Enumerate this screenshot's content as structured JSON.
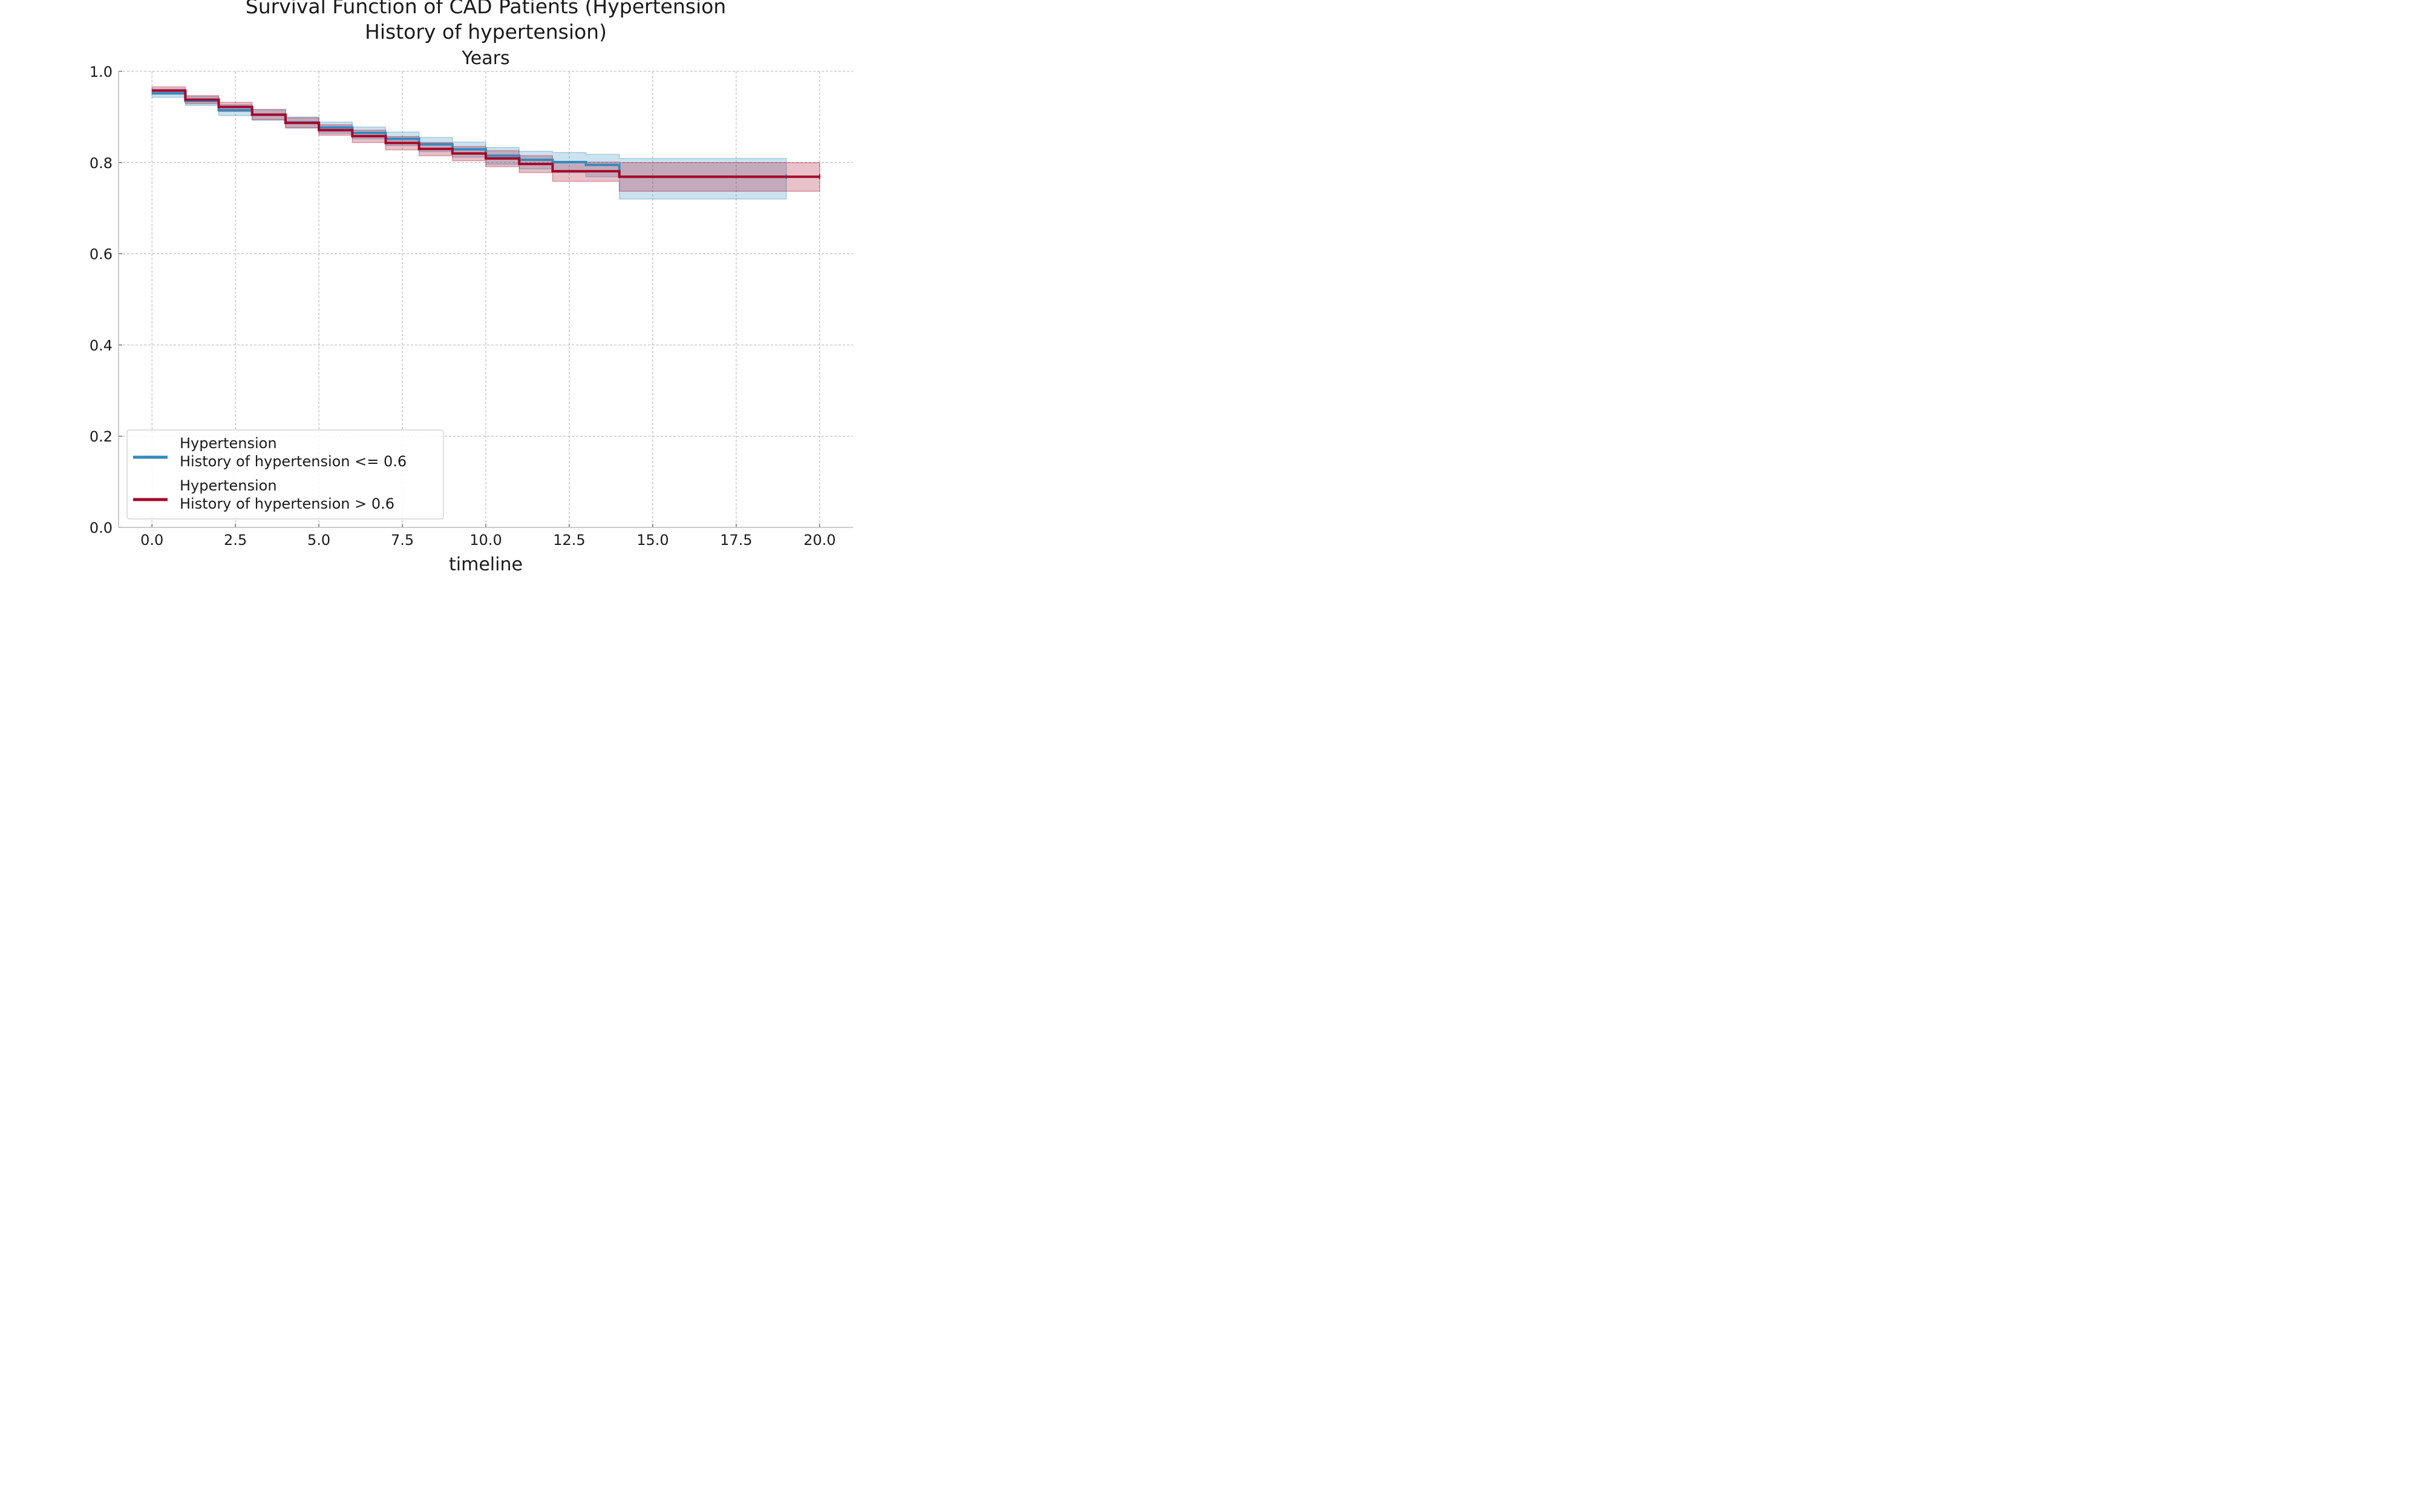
{
  "chart_data": {
    "type": "line",
    "title": "Survival Function of CAD Patients (Hypertension\nHistory of hypertension)",
    "subtitle": "Years",
    "xlabel": "timeline",
    "ylabel": "",
    "xlim": [
      -1,
      21
    ],
    "ylim": [
      0.0,
      1.0
    ],
    "xticks": [
      "0.0",
      "2.5",
      "5.0",
      "7.5",
      "10.0",
      "12.5",
      "15.0",
      "17.5",
      "20.0"
    ],
    "yticks": [
      "0.0",
      "0.2",
      "0.4",
      "0.6",
      "0.8",
      "1.0"
    ],
    "grid": true,
    "legend_position": "lower-left",
    "series": [
      {
        "name": "Hypertension\nHistory of hypertension <= 0.6",
        "color": "#348abd",
        "x": [
          0,
          1,
          2,
          3,
          4,
          5,
          6,
          7,
          8,
          9,
          10,
          11,
          12,
          13,
          14,
          19
        ],
        "y": [
          0.952,
          0.935,
          0.915,
          0.905,
          0.888,
          0.877,
          0.865,
          0.852,
          0.84,
          0.829,
          0.815,
          0.806,
          0.801,
          0.795,
          0.769,
          0.769
        ],
        "ci_lower": [
          0.943,
          0.925,
          0.903,
          0.893,
          0.876,
          0.864,
          0.852,
          0.837,
          0.824,
          0.812,
          0.796,
          0.786,
          0.778,
          0.769,
          0.72,
          0.72
        ],
        "ci_upper": [
          0.961,
          0.945,
          0.927,
          0.916,
          0.9,
          0.889,
          0.878,
          0.867,
          0.855,
          0.845,
          0.833,
          0.825,
          0.822,
          0.818,
          0.809,
          0.809
        ]
      },
      {
        "name": "Hypertension\nHistory of hypertension > 0.6",
        "color": "#a60628",
        "x": [
          0,
          1,
          2,
          3,
          4,
          5,
          6,
          7,
          8,
          9,
          10,
          11,
          12,
          14,
          20
        ],
        "y": [
          0.958,
          0.938,
          0.922,
          0.905,
          0.887,
          0.871,
          0.858,
          0.843,
          0.83,
          0.82,
          0.809,
          0.797,
          0.781,
          0.769,
          0.769
        ],
        "ci_lower": [
          0.95,
          0.929,
          0.912,
          0.894,
          0.876,
          0.86,
          0.844,
          0.828,
          0.815,
          0.804,
          0.791,
          0.778,
          0.759,
          0.737,
          0.737
        ],
        "ci_upper": [
          0.966,
          0.947,
          0.932,
          0.916,
          0.898,
          0.883,
          0.871,
          0.857,
          0.844,
          0.835,
          0.826,
          0.815,
          0.801,
          0.8,
          0.8
        ]
      }
    ]
  }
}
